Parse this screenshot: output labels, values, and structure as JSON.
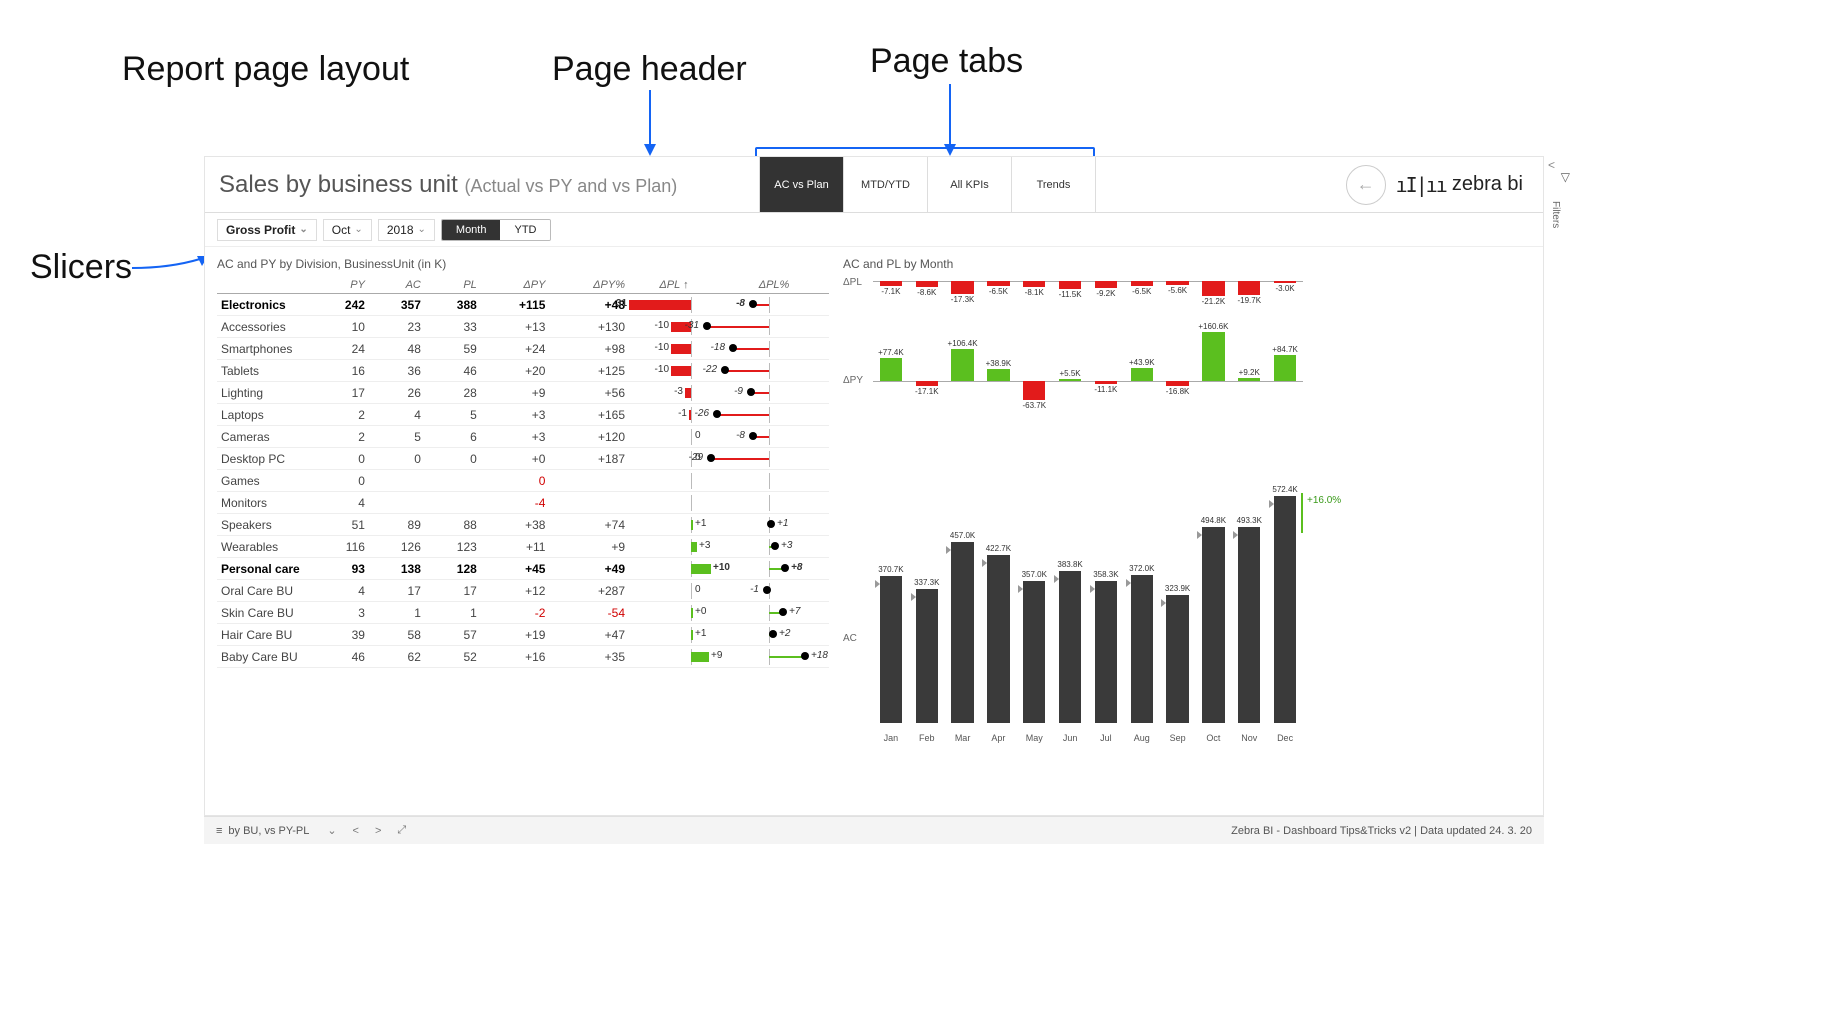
{
  "annotations": {
    "layout": "Report page layout",
    "header": "Page header",
    "tabs": "Page tabs",
    "slicers": "Slicers"
  },
  "header": {
    "title_main": "Sales by business unit",
    "title_sub": "(Actual vs PY and vs Plan)",
    "tabs": [
      "AC vs Plan",
      "MTD/YTD",
      "All KPIs",
      "Trends"
    ],
    "active_tab": 0,
    "logo_text": "zebra bi"
  },
  "slicers": {
    "measure": "Gross Profit",
    "month": "Oct",
    "year": "2018",
    "period_options": [
      "Month",
      "YTD"
    ],
    "period_active": 0
  },
  "table": {
    "title": "AC and PY by Division, BusinessUnit (in K)",
    "columns": [
      "",
      "PY",
      "AC",
      "PL",
      "ΔPY",
      "ΔPY%",
      "ΔPL ↑",
      "ΔPL%"
    ],
    "dpl_bar_range": 35,
    "dpl_pct_range": 35,
    "rows": [
      {
        "label": "Electronics",
        "bold": true,
        "py": "242",
        "ac": "357",
        "pl": "388",
        "dpy": "+115",
        "dpypct": "+48",
        "dpl": -31,
        "dplpct": -8
      },
      {
        "label": "Accessories",
        "py": "10",
        "ac": "23",
        "pl": "33",
        "dpy": "+13",
        "dpypct": "+130",
        "dpl": -10,
        "dplpct": -31
      },
      {
        "label": "Smartphones",
        "py": "24",
        "ac": "48",
        "pl": "59",
        "dpy": "+24",
        "dpypct": "+98",
        "dpl": -10,
        "dplpct": -18
      },
      {
        "label": "Tablets",
        "py": "16",
        "ac": "36",
        "pl": "46",
        "dpy": "+20",
        "dpypct": "+125",
        "dpl": -10,
        "dplpct": -22
      },
      {
        "label": "Lighting",
        "py": "17",
        "ac": "26",
        "pl": "28",
        "dpy": "+9",
        "dpypct": "+56",
        "dpl": -3,
        "dplpct": -9
      },
      {
        "label": "Laptops",
        "py": "2",
        "ac": "4",
        "pl": "5",
        "dpy": "+3",
        "dpypct": "+165",
        "dpl": -1,
        "dplpct": -26
      },
      {
        "label": "Cameras",
        "py": "2",
        "ac": "5",
        "pl": "6",
        "dpy": "+3",
        "dpypct": "+120",
        "dpl": 0,
        "dplpct": -8
      },
      {
        "label": "Desktop PC",
        "py": "0",
        "ac": "0",
        "pl": "0",
        "dpy": "+0",
        "dpypct": "+187",
        "dpl": 0,
        "dplpct": -29
      },
      {
        "label": "Games",
        "py": "0",
        "ac": "",
        "pl": "",
        "dpy": "0",
        "dpypct": "",
        "dpl": null,
        "dplpct": null,
        "dpy_neg": true
      },
      {
        "label": "Monitors",
        "py": "4",
        "ac": "",
        "pl": "",
        "dpy": "-4",
        "dpypct": "",
        "dpl": null,
        "dplpct": null,
        "dpy_neg": true
      },
      {
        "label": "Speakers",
        "py": "51",
        "ac": "89",
        "pl": "88",
        "dpy": "+38",
        "dpypct": "+74",
        "dpl": 1,
        "dplpct": 1
      },
      {
        "label": "Wearables",
        "py": "116",
        "ac": "126",
        "pl": "123",
        "dpy": "+11",
        "dpypct": "+9",
        "dpl": 3,
        "dplpct": 3
      },
      {
        "label": "Personal care",
        "bold": true,
        "py": "93",
        "ac": "138",
        "pl": "128",
        "dpy": "+45",
        "dpypct": "+49",
        "dpl": 10,
        "dplpct": 8
      },
      {
        "label": "Oral Care BU",
        "py": "4",
        "ac": "17",
        "pl": "17",
        "dpy": "+12",
        "dpypct": "+287",
        "dpl": 0,
        "dplpct": -1
      },
      {
        "label": "Skin Care BU",
        "py": "3",
        "ac": "1",
        "pl": "1",
        "dpy": "-2",
        "dpypct": "-54",
        "dpl": 0.3,
        "dplpct": 7,
        "dpy_neg": true,
        "dpypct_neg": true,
        "dpl_label": "+0"
      },
      {
        "label": "Hair Care BU",
        "py": "39",
        "ac": "58",
        "pl": "57",
        "dpy": "+19",
        "dpypct": "+47",
        "dpl": 1,
        "dplpct": 2
      },
      {
        "label": "Baby Care BU",
        "py": "46",
        "ac": "62",
        "pl": "52",
        "dpy": "+16",
        "dpypct": "+35",
        "dpl": 9,
        "dplpct": 18
      }
    ]
  },
  "right_charts": {
    "title": "AC and PL by Month",
    "months": [
      "Jan",
      "Feb",
      "Mar",
      "Apr",
      "May",
      "Jun",
      "Jul",
      "Aug",
      "Sep",
      "Oct",
      "Nov",
      "Dec"
    ],
    "dpl": {
      "label": "ΔPL",
      "values": [
        -7.1,
        -8.6,
        -17.3,
        -6.5,
        -8.1,
        -11.5,
        -9.2,
        -6.5,
        -5.6,
        -21.2,
        -19.7,
        -3.0
      ],
      "labels": [
        "-7.1K",
        "-8.6K",
        "-17.3K",
        "-6.5K",
        "-8.1K",
        "-11.5K",
        "-9.2K",
        "-6.5K",
        "-5.6K",
        "-21.2K",
        "-19.7K",
        "-3.0K"
      ],
      "max_abs": 22,
      "color": "#e21b1b"
    },
    "dpy": {
      "label": "ΔPY",
      "values": [
        77.4,
        -17.1,
        106.4,
        38.9,
        -63.7,
        5.5,
        -11.1,
        43.9,
        -16.8,
        160.6,
        9.2,
        84.7
      ],
      "labels": [
        "+77.4K",
        "-17.1K",
        "+106.4K",
        "+38.9K",
        "-63.7K",
        "+5.5K",
        "-11.1K",
        "+43.9K",
        "-16.8K",
        "+160.6K",
        "+9.2K",
        "+84.7K"
      ],
      "max_abs": 165
    },
    "ac": {
      "label": "AC",
      "values": [
        370.7,
        337.3,
        457.0,
        422.7,
        357.0,
        383.8,
        358.3,
        372.0,
        323.9,
        494.8,
        493.3,
        572.4
      ],
      "labels": [
        "370.7K",
        "337.3K",
        "457.0K",
        "422.7K",
        "357.0K",
        "383.8K",
        "358.3K",
        "372.0K",
        "323.9K",
        "494.8K",
        "493.3K",
        "572.4K"
      ],
      "max": 580,
      "growth_label": "+16.0%",
      "color": "#3a3a3a"
    }
  },
  "footer": {
    "page_nav": "by BU, vs PY-PL",
    "right": "Zebra BI - Dashboard Tips&Tricks v2  |  Data updated 24. 3. 20"
  },
  "filters_label": "Filters",
  "colors": {
    "red": "#e21b1b",
    "green": "#5bbf1f",
    "dark": "#3a3a3a",
    "blue": "#1464f4"
  }
}
